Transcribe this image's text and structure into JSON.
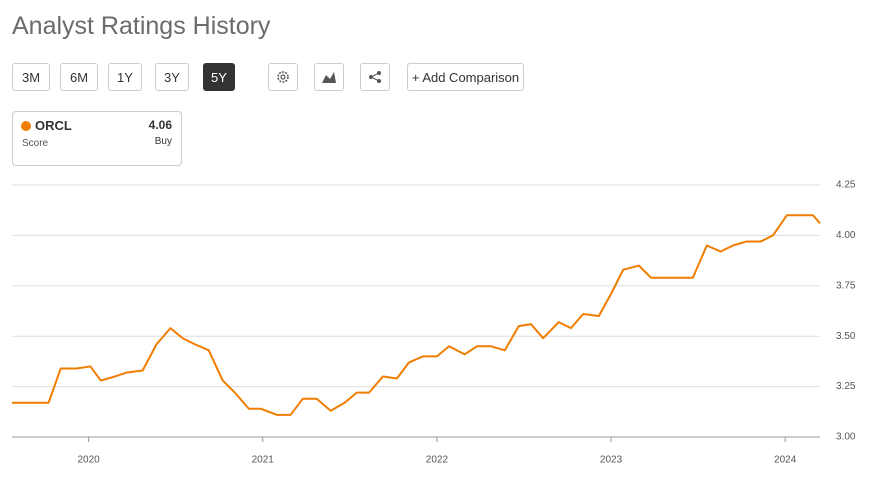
{
  "header": {
    "title": "Analyst Ratings History"
  },
  "range_buttons": [
    "3M",
    "6M",
    "1Y",
    "3Y",
    "5Y"
  ],
  "selected_range": "5Y",
  "add_comparison": "+ Add Comparison",
  "legend": {
    "ticker": "ORCL",
    "label": "Score",
    "value": "4.06",
    "rating": "Buy"
  },
  "chart_data": {
    "type": "line",
    "x": [
      2019.56,
      2019.77,
      2019.84,
      2019.93,
      2020.01,
      2020.07,
      2020.15,
      2020.22,
      2020.31,
      2020.39,
      2020.47,
      2020.54,
      2020.61,
      2020.69,
      2020.77,
      2020.84,
      2020.92,
      2020.99,
      2021.08,
      2021.16,
      2021.23,
      2021.31,
      2021.39,
      2021.47,
      2021.54,
      2021.61,
      2021.69,
      2021.77,
      2021.84,
      2021.92,
      2022.0,
      2022.07,
      2022.16,
      2022.23,
      2022.31,
      2022.39,
      2022.47,
      2022.54,
      2022.61,
      2022.7,
      2022.77,
      2022.84,
      2022.93,
      2023.0,
      2023.07,
      2023.16,
      2023.23,
      2023.31,
      2023.4,
      2023.47,
      2023.55,
      2023.63,
      2023.7,
      2023.78,
      2023.86,
      2023.93,
      2024.01,
      2024.09,
      2024.16,
      2024.2
    ],
    "series": [
      {
        "name": "ORCL",
        "color": "#f07d00",
        "values": [
          3.17,
          3.17,
          3.34,
          3.34,
          3.35,
          3.28,
          3.3,
          3.32,
          3.33,
          3.46,
          3.54,
          3.49,
          3.46,
          3.43,
          3.28,
          3.22,
          3.14,
          3.14,
          3.11,
          3.11,
          3.19,
          3.19,
          3.13,
          3.17,
          3.22,
          3.22,
          3.3,
          3.29,
          3.37,
          3.4,
          3.4,
          3.45,
          3.41,
          3.45,
          3.45,
          3.43,
          3.55,
          3.56,
          3.49,
          3.57,
          3.54,
          3.61,
          3.6,
          3.71,
          3.83,
          3.85,
          3.79,
          3.79,
          3.79,
          3.79,
          3.95,
          3.92,
          3.95,
          3.97,
          3.97,
          4.0,
          4.1,
          4.1,
          4.1,
          4.06
        ]
      }
    ],
    "xlim": [
      2019.56,
      2024.2
    ],
    "xticks": [
      2020,
      2021,
      2022,
      2023,
      2024
    ],
    "ylim": [
      3.0,
      4.25
    ],
    "yticks": [
      4.25,
      {
        "value": 4.0,
        "label": "4.00"
      },
      3.75,
      {
        "value": 3.5,
        "label": "3.50"
      },
      3.25,
      {
        "value": 3.0,
        "label": "3.00"
      }
    ],
    "grid": true
  }
}
